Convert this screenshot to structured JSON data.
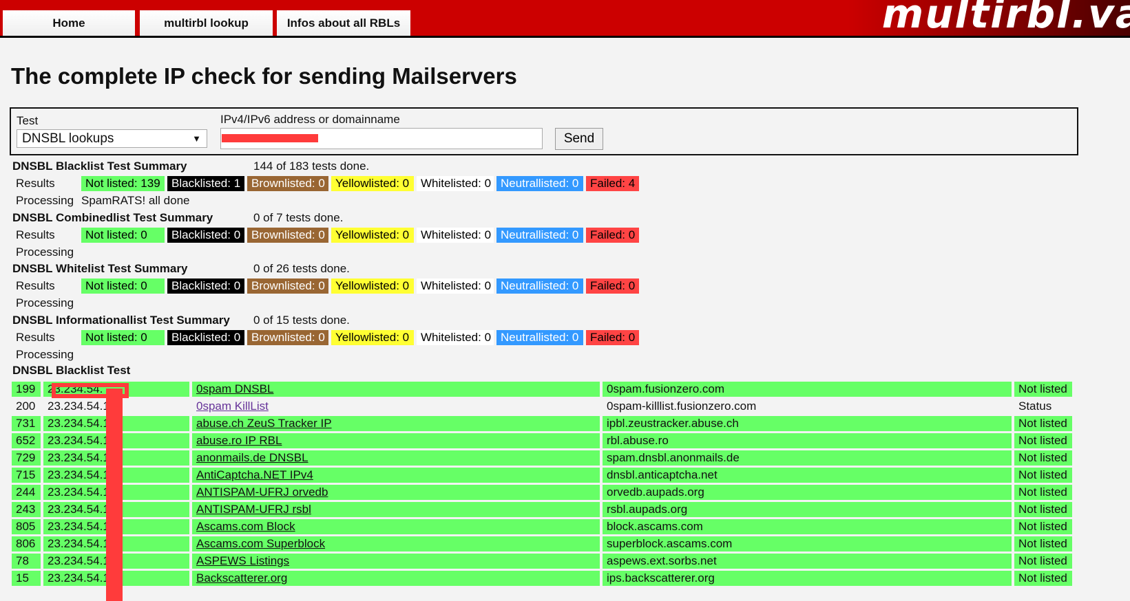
{
  "nav": {
    "tabs": [
      "Home",
      "multirbl lookup",
      "Infos about all RBLs"
    ],
    "logo": "multirbl.va"
  },
  "title": "The complete IP check for sending Mailservers",
  "form": {
    "test_label": "Test",
    "test_value": "DNSBL lookups",
    "ip_label": "IPv4/IPv6 address or domainname",
    "ip_value": "",
    "send": "Send"
  },
  "colors": {
    "not_listed": "#66ff66",
    "blacklisted": "#000000",
    "brownlisted": "#996633",
    "yellowlisted": "#ffff33",
    "whitelisted": "#ffffff",
    "neutrallisted": "#3399ff",
    "failed": "#ff4444"
  },
  "summaries": [
    {
      "title": "DNSBL Blacklist Test Summary",
      "progress": "144 of 183 tests done.",
      "results_label": "Results",
      "badges": [
        "Not listed: 139",
        "Blacklisted: 1",
        "Brownlisted: 0",
        "Yellowlisted: 0",
        "Whitelisted: 0",
        "Neutrallisted: 0",
        "Failed: 4"
      ],
      "processing_label": "Processing",
      "processing": "SpamRATS! all done"
    },
    {
      "title": "DNSBL Combinedlist Test Summary",
      "progress": "0 of 7 tests done.",
      "results_label": "Results",
      "badges": [
        "Not listed: 0",
        "Blacklisted: 0",
        "Brownlisted: 0",
        "Yellowlisted: 0",
        "Whitelisted: 0",
        "Neutrallisted: 0",
        "Failed: 0"
      ],
      "processing_label": "Processing",
      "processing": ""
    },
    {
      "title": "DNSBL Whitelist Test Summary",
      "progress": "0 of 26 tests done.",
      "results_label": "Results",
      "badges": [
        "Not listed: 0",
        "Blacklisted: 0",
        "Brownlisted: 0",
        "Yellowlisted: 0",
        "Whitelisted: 0",
        "Neutrallisted: 0",
        "Failed: 0"
      ],
      "processing_label": "Processing",
      "processing": ""
    },
    {
      "title": "DNSBL Informationallist Test Summary",
      "progress": "0 of 15 tests done.",
      "results_label": "Results",
      "badges": [
        "Not listed: 0",
        "Blacklisted: 0",
        "Brownlisted: 0",
        "Yellowlisted: 0",
        "Whitelisted: 0",
        "Neutrallisted: 0",
        "Failed: 0"
      ],
      "processing_label": "Processing",
      "processing": ""
    }
  ],
  "table": {
    "title": "DNSBL Blacklist Test",
    "rows": [
      {
        "id": "199",
        "ip": "23.234.54.",
        "name": "0spam DNSBL",
        "host": "0spam.fusionzero.com",
        "status": "Not listed",
        "green": true
      },
      {
        "id": "200",
        "ip": "23.234.54.1",
        "name": "0spam KillList",
        "host": "0spam-killlist.fusionzero.com",
        "status": "Status",
        "green": false
      },
      {
        "id": "731",
        "ip": "23.234.54.1",
        "name": "abuse.ch ZeuS Tracker IP",
        "host": "ipbl.zeustracker.abuse.ch",
        "status": "Not listed",
        "green": true
      },
      {
        "id": "652",
        "ip": "23.234.54.1",
        "name": "abuse.ro IP RBL",
        "host": "rbl.abuse.ro",
        "status": "Not listed",
        "green": true
      },
      {
        "id": "729",
        "ip": "23.234.54.1",
        "name": "anonmails.de DNSBL",
        "host": "spam.dnsbl.anonmails.de",
        "status": "Not listed",
        "green": true
      },
      {
        "id": "715",
        "ip": "23.234.54.1",
        "name": "AntiCaptcha.NET IPv4",
        "host": "dnsbl.anticaptcha.net",
        "status": "Not listed",
        "green": true
      },
      {
        "id": "244",
        "ip": "23.234.54.1",
        "name": "ANTISPAM-UFRJ orvedb",
        "host": "orvedb.aupads.org",
        "status": "Not listed",
        "green": true
      },
      {
        "id": "243",
        "ip": "23.234.54.1",
        "name": "ANTISPAM-UFRJ rsbl",
        "host": "rsbl.aupads.org",
        "status": "Not listed",
        "green": true
      },
      {
        "id": "805",
        "ip": "23.234.54.1",
        "name": "Ascams.com Block",
        "host": "block.ascams.com",
        "status": "Not listed",
        "green": true
      },
      {
        "id": "806",
        "ip": "23.234.54.1",
        "name": "Ascams.com Superblock",
        "host": "superblock.ascams.com",
        "status": "Not listed",
        "green": true
      },
      {
        "id": "78",
        "ip": "23.234.54.1",
        "name": "ASPEWS Listings",
        "host": "aspews.ext.sorbs.net",
        "status": "Not listed",
        "green": true
      },
      {
        "id": "15",
        "ip": "23.234.54.1",
        "name": "Backscatterer.org",
        "host": "ips.backscatterer.org",
        "status": "Not listed",
        "green": true
      }
    ]
  }
}
